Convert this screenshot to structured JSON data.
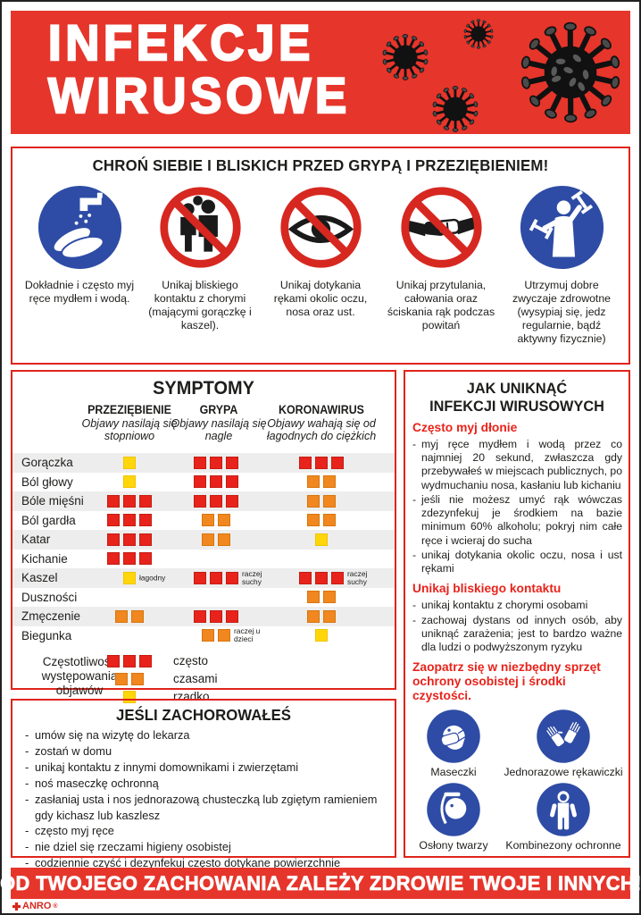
{
  "palette": {
    "banner_red": "#e6352b",
    "border_red": "#e0241b",
    "accent_red": "#e8231b",
    "prohibition_red": "#d62820",
    "mandatory_blue": "#2e4ca5",
    "square_red": "#e8231b",
    "square_orange": "#f0881f",
    "square_yellow": "#ffd60a",
    "row_gray": "#ededed"
  },
  "header": {
    "title_line1": "INFEKCJE",
    "title_line2": "WIRUSOWE"
  },
  "protect": {
    "title": "CHROŃ SIEBIE I BLISKICH PRZED GRYPĄ I PRZEZIĘBIENIEM!",
    "items": [
      {
        "icon": "wash-hands",
        "caption": "Dokładnie i często myj ręce mydłem i wodą."
      },
      {
        "icon": "no-close-contact",
        "caption": "Unikaj bliskiego kontaktu z chorymi (mającymi gorączkę i kaszel)."
      },
      {
        "icon": "no-touch-face",
        "caption": "Unikaj dotykania rękami okolic oczu, nosa oraz ust."
      },
      {
        "icon": "no-handshake",
        "caption": "Unikaj przytulania, całowania oraz ściskania rąk podczas powitań"
      },
      {
        "icon": "healthy-habits",
        "caption": "Utrzymuj dobre zwyczaje zdrowotne (wysypiaj się, jedz regularnie, bądź aktywny fizycznie)"
      }
    ]
  },
  "symptoms": {
    "title": "SYMPTOMY",
    "columns": [
      {
        "name": "PRZEZIĘBIENIE",
        "subtitle": "Objawy nasilają się stopniowo"
      },
      {
        "name": "GRYPA",
        "subtitle": "Objawy nasilają się nagle"
      },
      {
        "name": "KORONAWIRUS",
        "subtitle": "Objawy wahają się od łagodnych do ciężkich"
      }
    ],
    "rows": [
      {
        "label": "Gorączka",
        "cells": [
          {
            "n": 1,
            "c": "yellow"
          },
          {
            "n": 3,
            "c": "red"
          },
          {
            "n": 3,
            "c": "red"
          }
        ]
      },
      {
        "label": "Ból głowy",
        "cells": [
          {
            "n": 1,
            "c": "yellow"
          },
          {
            "n": 3,
            "c": "red"
          },
          {
            "n": 2,
            "c": "orange"
          }
        ]
      },
      {
        "label": "Bóle mięśni",
        "cells": [
          {
            "n": 3,
            "c": "red"
          },
          {
            "n": 3,
            "c": "red"
          },
          {
            "n": 2,
            "c": "orange"
          }
        ]
      },
      {
        "label": "Ból gardła",
        "cells": [
          {
            "n": 3,
            "c": "red"
          },
          {
            "n": 2,
            "c": "orange"
          },
          {
            "n": 2,
            "c": "orange"
          }
        ]
      },
      {
        "label": "Katar",
        "cells": [
          {
            "n": 3,
            "c": "red"
          },
          {
            "n": 2,
            "c": "orange"
          },
          {
            "n": 1,
            "c": "yellow"
          }
        ]
      },
      {
        "label": "Kichanie",
        "cells": [
          {
            "n": 3,
            "c": "red"
          },
          {
            "n": 0
          },
          {
            "n": 0
          }
        ]
      },
      {
        "label": "Kaszel",
        "cells": [
          {
            "n": 1,
            "c": "yellow",
            "note": "łagodny"
          },
          {
            "n": 3,
            "c": "red",
            "note": "raczej suchy"
          },
          {
            "n": 3,
            "c": "red",
            "note": "raczej suchy"
          }
        ]
      },
      {
        "label": "Duszności",
        "cells": [
          {
            "n": 0
          },
          {
            "n": 0
          },
          {
            "n": 2,
            "c": "orange"
          }
        ]
      },
      {
        "label": "Zmęczenie",
        "cells": [
          {
            "n": 2,
            "c": "orange"
          },
          {
            "n": 3,
            "c": "red"
          },
          {
            "n": 2,
            "c": "orange"
          }
        ]
      },
      {
        "label": "Biegunka",
        "cells": [
          {
            "n": 0
          },
          {
            "n": 2,
            "c": "orange",
            "note": "raczej u dzieci"
          },
          {
            "n": 1,
            "c": "yellow"
          }
        ]
      }
    ],
    "legend": {
      "label": "Częstotliwość występowania objawów",
      "entries": [
        {
          "n": 3,
          "c": "red",
          "text": "często"
        },
        {
          "n": 2,
          "c": "orange",
          "text": "czasami"
        },
        {
          "n": 1,
          "c": "yellow",
          "text": "rzadko"
        }
      ]
    }
  },
  "avoid": {
    "title_line1": "JAK UNIKNĄĆ",
    "title_line2": "INFEKCJI WIRUSOWYCH",
    "groups": [
      {
        "heading": "Często myj dłonie",
        "bullets": [
          "myj ręce mydłem i wodą przez co najmniej 20 sekund, zwłaszcza gdy przebywałeś w miejscach publicznych, po wydmuchaniu nosa, kasłaniu lub kichaniu",
          "jeśli nie możesz umyć rąk wówczas zdezynfekuj je środkiem na bazie minimum 60% alkoholu; pokryj nim całe ręce i wcieraj do sucha",
          "unikaj dotykania okolic oczu, nosa i ust rękami"
        ]
      },
      {
        "heading": "Unikaj bliskiego kontaktu",
        "bullets": [
          "unikaj kontaktu z chorymi osobami",
          "zachowaj dystans od innych osób, aby uniknąć zarażenia; jest to bardzo ważne dla ludzi o podwyższonym ryzyku"
        ]
      },
      {
        "heading": "Zaopatrz się w niezbędny sprzęt ochrony osobistej i środki czystości.",
        "bullets": []
      }
    ],
    "ppe": [
      {
        "icon": "face-mask",
        "label": "Maseczki"
      },
      {
        "icon": "gloves",
        "label": "Jednorazowe rękawiczki"
      },
      {
        "icon": "face-shield",
        "label": "Osłony twarzy"
      },
      {
        "icon": "protective-suit",
        "label": "Kombinezony ochronne"
      }
    ]
  },
  "sick": {
    "title": "JEŚLI ZACHOROWAŁEŚ",
    "bullets": [
      "umów się na wizytę do lekarza",
      "zostań w domu",
      "unikaj kontaktu z innymi domownikami i zwierzętami",
      "noś maseczkę ochronną",
      "zasłaniaj usta i nos jednorazową chusteczką lub zgiętym ramieniem gdy kichasz lub kaszlesz",
      "często myj ręce",
      "nie dziel się rzeczami higieny osobistej",
      "codziennie czyść i dezynfekuj często dotykane powierzchnie"
    ]
  },
  "footer": {
    "text": "OD TWOJEGO ZACHOWANIA ZALEŻY ZDROWIE TWOJE I INNYCH!"
  },
  "brand": {
    "name": "ANRO",
    "mark": "®"
  }
}
